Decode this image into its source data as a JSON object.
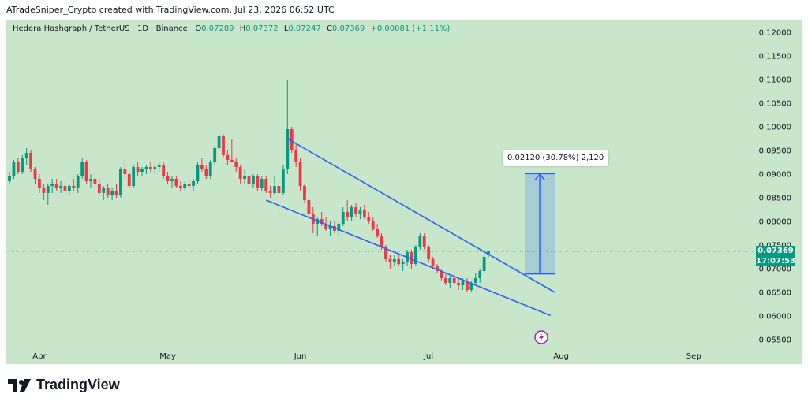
{
  "header": {
    "title": "ATradeSniper_Crypto created with TradingView.com, Jul 23, 2026 06:52 UTC"
  },
  "legend": {
    "symbol": "Hedera Hashgraph / TetherUS · 1D · Binance",
    "o_label": "O",
    "o_value": "0.07289",
    "h_label": "H",
    "h_value": "0.07372",
    "l_label": "L",
    "l_value": "0.07247",
    "c_label": "C",
    "c_value": "0.07369",
    "change": "+0.00081 (+1.11%)"
  },
  "price_badge": {
    "price": "0.07369",
    "countdown": "17:07:53"
  },
  "measure": {
    "label": "0.02120 (30.78%) 2,120"
  },
  "brand": {
    "name": "TradingView"
  },
  "colors": {
    "up": "#089981",
    "down": "#f23645",
    "trendline": "#2962ff",
    "background": "#c8e6c9"
  },
  "chart_data": {
    "type": "candlestick",
    "xaxis": {
      "ticks": [
        "Apr",
        "May",
        "Jun",
        "Jul",
        "Aug",
        "Sep"
      ],
      "tick_dates": [
        "2026-04-01",
        "2026-05-01",
        "2026-06-01",
        "2026-07-01",
        "2026-08-01",
        "2026-09-01"
      ]
    },
    "yaxis": {
      "ticks": [
        "0.12000",
        "0.11500",
        "0.11000",
        "0.10500",
        "0.10000",
        "0.09500",
        "0.09000",
        "0.08500",
        "0.08000",
        "0.07500",
        "0.07000",
        "0.06500",
        "0.06000",
        "0.05500"
      ],
      "range": [
        0.0535,
        0.1215
      ],
      "position": "right"
    },
    "last_close": 0.07369,
    "candles": [
      [
        0.0885,
        0.0905,
        0.088,
        0.0895
      ],
      [
        0.0895,
        0.093,
        0.089,
        0.0925
      ],
      [
        0.0925,
        0.0935,
        0.09,
        0.0905
      ],
      [
        0.0905,
        0.094,
        0.09,
        0.0935
      ],
      [
        0.0935,
        0.0955,
        0.092,
        0.0945
      ],
      [
        0.0945,
        0.095,
        0.0905,
        0.091
      ],
      [
        0.091,
        0.0915,
        0.088,
        0.089
      ],
      [
        0.089,
        0.09,
        0.086,
        0.087
      ],
      [
        0.087,
        0.088,
        0.0845,
        0.086
      ],
      [
        0.086,
        0.088,
        0.0835,
        0.0875
      ],
      [
        0.0875,
        0.089,
        0.086,
        0.088
      ],
      [
        0.088,
        0.089,
        0.0865,
        0.087
      ],
      [
        0.087,
        0.0885,
        0.086,
        0.0875
      ],
      [
        0.0875,
        0.0885,
        0.086,
        0.0865
      ],
      [
        0.0865,
        0.088,
        0.0855,
        0.0875
      ],
      [
        0.0875,
        0.089,
        0.0865,
        0.087
      ],
      [
        0.087,
        0.09,
        0.086,
        0.0895
      ],
      [
        0.0895,
        0.0935,
        0.089,
        0.0925
      ],
      [
        0.0925,
        0.093,
        0.088,
        0.0885
      ],
      [
        0.0885,
        0.09,
        0.087,
        0.089
      ],
      [
        0.089,
        0.0905,
        0.087,
        0.088
      ],
      [
        0.088,
        0.089,
        0.0855,
        0.086
      ],
      [
        0.086,
        0.0875,
        0.0845,
        0.087
      ],
      [
        0.087,
        0.088,
        0.085,
        0.0855
      ],
      [
        0.0855,
        0.087,
        0.0845,
        0.0865
      ],
      [
        0.0865,
        0.088,
        0.085,
        0.0855
      ],
      [
        0.0855,
        0.0915,
        0.085,
        0.091
      ],
      [
        0.091,
        0.093,
        0.089,
        0.09
      ],
      [
        0.09,
        0.0905,
        0.087,
        0.0875
      ],
      [
        0.0875,
        0.092,
        0.087,
        0.0915
      ],
      [
        0.0915,
        0.0925,
        0.0895,
        0.0905
      ],
      [
        0.0905,
        0.0915,
        0.0895,
        0.091
      ],
      [
        0.091,
        0.092,
        0.09,
        0.0915
      ],
      [
        0.0915,
        0.0925,
        0.0905,
        0.091
      ],
      [
        0.091,
        0.092,
        0.09,
        0.0915
      ],
      [
        0.0915,
        0.0925,
        0.0905,
        0.092
      ],
      [
        0.092,
        0.0925,
        0.089,
        0.0895
      ],
      [
        0.0895,
        0.0905,
        0.088,
        0.0885
      ],
      [
        0.0885,
        0.0895,
        0.087,
        0.089
      ],
      [
        0.089,
        0.0895,
        0.087,
        0.0875
      ],
      [
        0.0875,
        0.0885,
        0.0865,
        0.087
      ],
      [
        0.087,
        0.0885,
        0.0865,
        0.088
      ],
      [
        0.088,
        0.089,
        0.087,
        0.0875
      ],
      [
        0.0875,
        0.089,
        0.0865,
        0.0885
      ],
      [
        0.0885,
        0.0925,
        0.088,
        0.092
      ],
      [
        0.092,
        0.0935,
        0.0905,
        0.091
      ],
      [
        0.091,
        0.092,
        0.089,
        0.0895
      ],
      [
        0.0895,
        0.093,
        0.089,
        0.0925
      ],
      [
        0.0925,
        0.096,
        0.092,
        0.0955
      ],
      [
        0.0955,
        0.0995,
        0.095,
        0.098
      ],
      [
        0.098,
        0.0985,
        0.0935,
        0.094
      ],
      [
        0.094,
        0.095,
        0.092,
        0.093
      ],
      [
        0.093,
        0.0975,
        0.0925,
        0.0925
      ],
      [
        0.0925,
        0.0935,
        0.0905,
        0.0915
      ],
      [
        0.0915,
        0.092,
        0.088,
        0.089
      ],
      [
        0.089,
        0.091,
        0.088,
        0.0895
      ],
      [
        0.0895,
        0.09,
        0.0875,
        0.088
      ],
      [
        0.088,
        0.09,
        0.087,
        0.0895
      ],
      [
        0.0895,
        0.09,
        0.0865,
        0.087
      ],
      [
        0.087,
        0.0895,
        0.0865,
        0.089
      ],
      [
        0.089,
        0.0895,
        0.086,
        0.0865
      ],
      [
        0.0865,
        0.0875,
        0.085,
        0.086
      ],
      [
        0.086,
        0.0895,
        0.0855,
        0.0875
      ],
      [
        0.0875,
        0.0885,
        0.0815,
        0.086
      ],
      [
        0.086,
        0.092,
        0.0855,
        0.091
      ],
      [
        0.091,
        0.11,
        0.09,
        0.0995
      ],
      [
        0.0995,
        0.1,
        0.0945,
        0.095
      ],
      [
        0.095,
        0.0965,
        0.0915,
        0.0925
      ],
      [
        0.0925,
        0.0935,
        0.0865,
        0.0875
      ],
      [
        0.0875,
        0.088,
        0.084,
        0.0845
      ],
      [
        0.0845,
        0.085,
        0.0805,
        0.0815
      ],
      [
        0.0815,
        0.083,
        0.0775,
        0.0795
      ],
      [
        0.0795,
        0.081,
        0.077,
        0.0805
      ],
      [
        0.0805,
        0.082,
        0.079,
        0.0795
      ],
      [
        0.0795,
        0.081,
        0.078,
        0.0785
      ],
      [
        0.0785,
        0.08,
        0.077,
        0.079
      ],
      [
        0.079,
        0.08,
        0.0775,
        0.078
      ],
      [
        0.078,
        0.08,
        0.077,
        0.0795
      ],
      [
        0.0795,
        0.083,
        0.079,
        0.082
      ],
      [
        0.082,
        0.0845,
        0.08,
        0.081
      ],
      [
        0.081,
        0.0835,
        0.08,
        0.083
      ],
      [
        0.083,
        0.084,
        0.081,
        0.0815
      ],
      [
        0.0815,
        0.083,
        0.0805,
        0.0825
      ],
      [
        0.0825,
        0.0835,
        0.0805,
        0.081
      ],
      [
        0.081,
        0.082,
        0.0795,
        0.08
      ],
      [
        0.08,
        0.081,
        0.078,
        0.0785
      ],
      [
        0.0785,
        0.0795,
        0.0765,
        0.077
      ],
      [
        0.077,
        0.0775,
        0.074,
        0.0745
      ],
      [
        0.0745,
        0.075,
        0.0715,
        0.072
      ],
      [
        0.072,
        0.073,
        0.07,
        0.0715
      ],
      [
        0.0715,
        0.073,
        0.0705,
        0.072
      ],
      [
        0.072,
        0.073,
        0.0705,
        0.071
      ],
      [
        0.071,
        0.072,
        0.0695,
        0.0715
      ],
      [
        0.0715,
        0.074,
        0.0705,
        0.0735
      ],
      [
        0.0735,
        0.074,
        0.07,
        0.071
      ],
      [
        0.071,
        0.075,
        0.0705,
        0.0745
      ],
      [
        0.0745,
        0.0775,
        0.074,
        0.077
      ],
      [
        0.077,
        0.0775,
        0.074,
        0.0745
      ],
      [
        0.0745,
        0.075,
        0.0715,
        0.072
      ],
      [
        0.072,
        0.0725,
        0.07,
        0.0705
      ],
      [
        0.0705,
        0.071,
        0.069,
        0.0695
      ],
      [
        0.0695,
        0.07,
        0.0675,
        0.068
      ],
      [
        0.068,
        0.069,
        0.0665,
        0.067
      ],
      [
        0.067,
        0.0685,
        0.066,
        0.068
      ],
      [
        0.068,
        0.069,
        0.0665,
        0.067
      ],
      [
        0.067,
        0.068,
        0.0655,
        0.0665
      ],
      [
        0.0665,
        0.068,
        0.0655,
        0.0675
      ],
      [
        0.0675,
        0.068,
        0.065,
        0.0655
      ],
      [
        0.0655,
        0.0675,
        0.065,
        0.067
      ],
      [
        0.067,
        0.069,
        0.0665,
        0.068
      ],
      [
        0.068,
        0.07,
        0.067,
        0.0695
      ],
      [
        0.0695,
        0.073,
        0.069,
        0.0725
      ],
      [
        0.07289,
        0.07372,
        0.07247,
        0.07369
      ]
    ],
    "trendlines": [
      {
        "from": [
          65.0,
          0.0975
        ],
        "to": [
          127.5,
          0.065
        ]
      },
      {
        "from": [
          60.0,
          0.0845
        ],
        "to": [
          126.5,
          0.0601
        ]
      }
    ],
    "price_range_measure": {
      "from_bar": [
        120.5,
        127.5
      ],
      "price_low": 0.0689,
      "price_high": 0.0901,
      "change": "0.02120",
      "percent": "30.78%",
      "ticks": "2,120"
    }
  }
}
